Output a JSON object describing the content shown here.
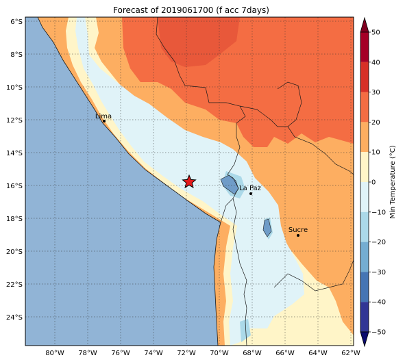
{
  "title": "Forecast of 2019061700 (f acc 7days)",
  "colorbar": {
    "label": "Min Temperature (°C)",
    "ticks": [
      "50",
      "40",
      "30",
      "20",
      "10",
      "0",
      "−10",
      "−20",
      "−30",
      "−40",
      "−50"
    ],
    "bands": [
      {
        "min": 40,
        "max": 50,
        "color": "#a50026"
      },
      {
        "min": 30,
        "max": 40,
        "color": "#d73027"
      },
      {
        "min": 20,
        "max": 30,
        "color": "#f46d43"
      },
      {
        "min": 10,
        "max": 20,
        "color": "#fdae61"
      },
      {
        "min": 0,
        "max": 10,
        "color": "#fff5c8"
      },
      {
        "min": -10,
        "max": 0,
        "color": "#e0f3f8"
      },
      {
        "min": -20,
        "max": -10,
        "color": "#abd9e9"
      },
      {
        "min": -30,
        "max": -20,
        "color": "#74add1"
      },
      {
        "min": -40,
        "max": -30,
        "color": "#4575b4"
      },
      {
        "min": -50,
        "max": -40,
        "color": "#313695"
      }
    ],
    "over_color": "#800020",
    "under_color": "#0a0a6e"
  },
  "axes": {
    "lon_labels": [
      "80°W",
      "78°W",
      "76°W",
      "74°W",
      "72°W",
      "70°W",
      "68°W",
      "66°W",
      "64°W",
      "62°W"
    ],
    "lat_labels": [
      "6°S",
      "8°S",
      "10°S",
      "12°S",
      "14°S",
      "16°S",
      "18°S",
      "20°S",
      "22°S",
      "24°S"
    ]
  },
  "cities": [
    {
      "name": "Lima"
    },
    {
      "name": "La Paz"
    },
    {
      "name": "Sucre"
    }
  ],
  "colors": {
    "ocean": "#91b4d6",
    "lake": "#6f9cc8"
  }
}
